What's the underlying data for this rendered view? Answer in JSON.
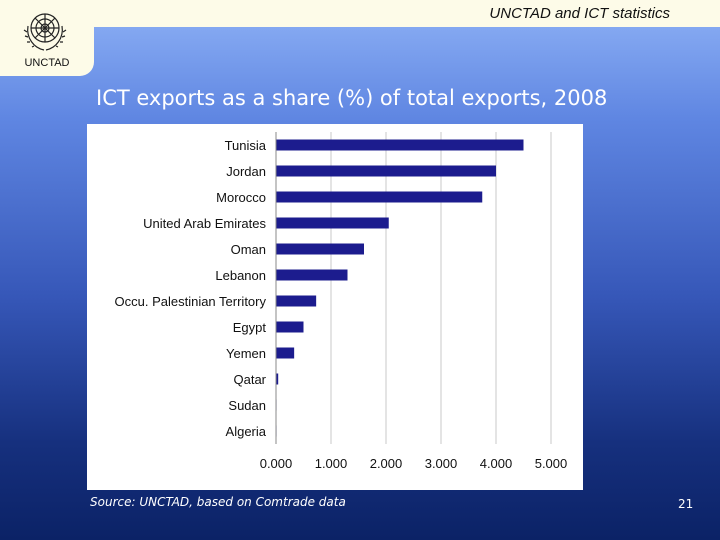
{
  "header": {
    "title": "UNCTAD and ICT statistics",
    "logo_text": "UNCTAD"
  },
  "slide": {
    "title": "ICT exports as a share (%) of total exports, 2008",
    "source": "Source: UNCTAD, based on Comtrade data",
    "page_number": "21"
  },
  "colors": {
    "bar_fill": "#1c1c8e",
    "gridline": "#c8c8c8"
  },
  "chart_data": {
    "type": "bar",
    "orientation": "horizontal",
    "title": "",
    "xlabel": "",
    "ylabel": "",
    "categories": [
      "Tunisia",
      "Jordan",
      "Morocco",
      "United Arab Emirates",
      "Oman",
      "Lebanon",
      "Occu. Palestinian Territory",
      "Egypt",
      "Yemen",
      "Qatar",
      "Sudan",
      "Algeria"
    ],
    "values": [
      4.5,
      4.0,
      3.75,
      2.05,
      1.6,
      1.3,
      0.73,
      0.5,
      0.33,
      0.04,
      0.01,
      0.01
    ],
    "xlim": [
      0,
      5
    ],
    "xticks": [
      "0.000",
      "1.000",
      "2.000",
      "3.000",
      "4.000",
      "5.000"
    ],
    "grid": "vertical"
  }
}
